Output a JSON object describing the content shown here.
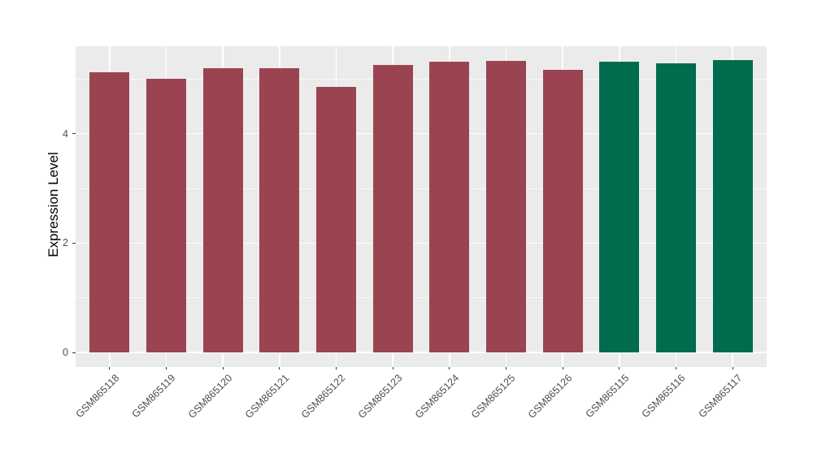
{
  "chart_data": {
    "type": "bar",
    "title": "",
    "ylabel": "Expression Level",
    "xlabel": "",
    "categories": [
      "GSM865118",
      "GSM865119",
      "GSM865120",
      "GSM865121",
      "GSM865122",
      "GSM865123",
      "GSM865124",
      "GSM865125",
      "GSM865126",
      "GSM865115",
      "GSM865116",
      "GSM865117"
    ],
    "values": [
      5.12,
      5.01,
      5.2,
      5.2,
      4.86,
      5.26,
      5.31,
      5.33,
      5.17,
      5.31,
      5.28,
      5.34
    ],
    "bar_colors": [
      "#9A4452",
      "#9A4452",
      "#9A4452",
      "#9A4452",
      "#9A4452",
      "#9A4452",
      "#9A4452",
      "#9A4452",
      "#9A4452",
      "#006B4D",
      "#006B4D",
      "#006B4D"
    ],
    "ytick_labels": [
      "0",
      "2",
      "4"
    ],
    "yticks_major": [
      0,
      2,
      4
    ],
    "yticks_minor": [
      1,
      3,
      5
    ],
    "ylim": [
      -0.27,
      5.6
    ],
    "grid": true,
    "legend": false,
    "panel_bg": "#EBEBEB",
    "grid_color": "#FFFFFF",
    "axis_text_color": "#4D4D4D",
    "axis_title_color": "#000000",
    "tick_color": "#333333"
  }
}
